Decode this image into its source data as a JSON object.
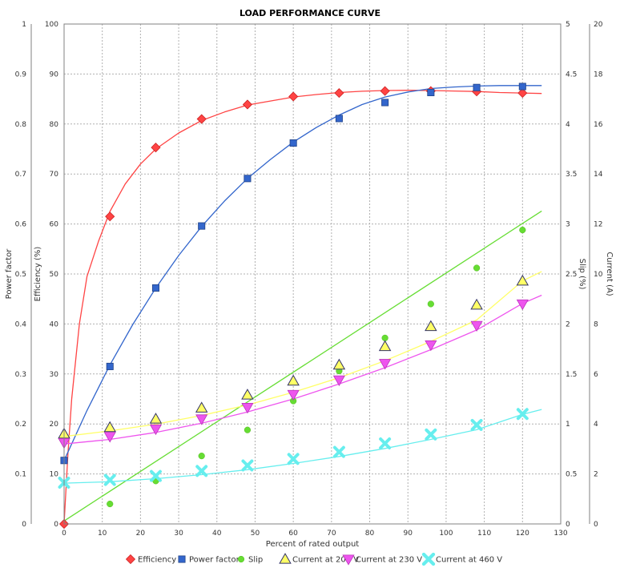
{
  "chart_data": {
    "type": "scatter",
    "title": "LOAD PERFORMANCE CURVE",
    "xlabel": "Percent of rated output",
    "xlim": [
      0,
      130
    ],
    "x_ticks": [
      0,
      10,
      20,
      30,
      40,
      50,
      60,
      70,
      80,
      90,
      100,
      110,
      120,
      130
    ],
    "grid": true,
    "legend_position": "bottom",
    "axes": {
      "power_factor": {
        "label": "Power factor",
        "side": "left-outer",
        "range": [
          0,
          1
        ],
        "ticks": [
          "0",
          "0.1",
          "0.2",
          "0.3",
          "0.4",
          "0.5",
          "0.6",
          "0.7",
          "0.8",
          "0.9",
          "1"
        ]
      },
      "efficiency": {
        "label": "Efficiency (%)",
        "side": "left-inner",
        "range": [
          0,
          100
        ],
        "ticks": [
          "0",
          "10",
          "20",
          "30",
          "40",
          "50",
          "60",
          "70",
          "80",
          "90",
          "100"
        ]
      },
      "slip": {
        "label": "Slip (%)",
        "side": "right-inner",
        "range": [
          0,
          5
        ],
        "ticks": [
          "0",
          "0.5",
          "1",
          "1.5",
          "2",
          "2.5",
          "3",
          "3.5",
          "4",
          "4.5",
          "5"
        ]
      },
      "current": {
        "label": "Current (A)",
        "side": "right-outer",
        "range": [
          0,
          20
        ],
        "ticks": [
          "0",
          "2",
          "4",
          "6",
          "8",
          "10",
          "12",
          "14",
          "16",
          "18",
          "20"
        ]
      }
    },
    "series": [
      {
        "name": "Efficiency",
        "axis": "efficiency",
        "color": "#ff4444",
        "marker": "diamond",
        "x": [
          0,
          12,
          24,
          36,
          48,
          60,
          72,
          84,
          96,
          108,
          120
        ],
        "values": [
          0,
          61.5,
          75.3,
          81,
          83.9,
          85.5,
          86.2,
          86.6,
          86.6,
          86.5,
          86.2
        ],
        "curve_x": [
          0,
          1,
          2,
          4,
          6,
          9,
          12,
          16,
          20,
          24,
          30,
          36,
          42,
          48,
          54,
          60,
          66,
          72,
          78,
          84,
          90,
          96,
          102,
          108,
          114,
          120,
          125
        ],
        "curve_y": [
          0,
          14,
          25,
          40,
          49.5,
          56.5,
          62.5,
          68,
          72,
          75,
          78.2,
          80.7,
          82.4,
          83.8,
          84.6,
          85.4,
          85.9,
          86.3,
          86.55,
          86.7,
          86.75,
          86.7,
          86.6,
          86.5,
          86.3,
          86.2,
          86.1
        ]
      },
      {
        "name": "Power factor",
        "axis": "power_factor",
        "color": "#3366cc",
        "marker": "square",
        "x": [
          0,
          12,
          24,
          36,
          48,
          60,
          72,
          84,
          96,
          108,
          120
        ],
        "values": [
          0.127,
          0.315,
          0.472,
          0.596,
          0.691,
          0.762,
          0.811,
          0.843,
          0.863,
          0.873,
          0.875
        ],
        "curve_x": [
          0,
          6,
          12,
          18,
          24,
          30,
          36,
          42,
          48,
          54,
          60,
          66,
          72,
          78,
          84,
          90,
          96,
          102,
          108,
          114,
          120,
          125
        ],
        "curve_y": [
          0.127,
          0.227,
          0.318,
          0.399,
          0.472,
          0.537,
          0.595,
          0.646,
          0.691,
          0.729,
          0.764,
          0.793,
          0.818,
          0.839,
          0.854,
          0.864,
          0.871,
          0.874,
          0.876,
          0.877,
          0.877,
          0.877
        ]
      },
      {
        "name": "Slip",
        "axis": "slip",
        "color": "#66dd33",
        "marker": "circle",
        "x": [
          12,
          24,
          36,
          48,
          60,
          72,
          84,
          96,
          108,
          120
        ],
        "values": [
          0.2,
          0.43,
          0.68,
          0.94,
          1.23,
          1.53,
          1.86,
          2.2,
          2.56,
          2.94
        ],
        "curve_x": [
          0,
          125
        ],
        "curve_y": [
          0.03,
          3.13
        ]
      },
      {
        "name": "Current at 208 V",
        "axis": "current",
        "color": "#ffff66",
        "marker": "triangle-up",
        "x": [
          0,
          12,
          24,
          36,
          48,
          60,
          72,
          84,
          96,
          108,
          120
        ],
        "values": [
          3.6,
          3.86,
          4.2,
          4.64,
          5.16,
          5.72,
          6.36,
          7.1,
          7.9,
          8.76,
          9.72
        ],
        "curve_x": [
          0,
          12,
          24,
          36,
          48,
          60,
          72,
          84,
          96,
          108,
          120,
          125
        ],
        "curve_y": [
          3.5,
          3.72,
          3.99,
          4.34,
          4.76,
          5.27,
          5.85,
          6.53,
          7.3,
          8.16,
          9.72,
          10.1
        ]
      },
      {
        "name": "Current at 230 V",
        "axis": "current",
        "color": "#ee55ee",
        "marker": "triangle-down",
        "x": [
          0,
          12,
          24,
          36,
          48,
          60,
          72,
          84,
          96,
          108,
          120
        ],
        "values": [
          3.25,
          3.5,
          3.8,
          4.2,
          4.66,
          5.18,
          5.76,
          6.42,
          7.16,
          7.94,
          8.8
        ],
        "curve_x": [
          0,
          12,
          24,
          36,
          48,
          60,
          72,
          84,
          96,
          108,
          120,
          125
        ],
        "curve_y": [
          3.2,
          3.38,
          3.66,
          4.03,
          4.48,
          5.0,
          5.6,
          6.25,
          6.97,
          7.76,
          8.82,
          9.15
        ]
      },
      {
        "name": "Current at 460 V",
        "axis": "current",
        "color": "#66eeee",
        "marker": "x",
        "x": [
          0,
          12,
          24,
          36,
          48,
          60,
          72,
          84,
          96,
          108,
          120
        ],
        "values": [
          1.65,
          1.76,
          1.92,
          2.12,
          2.34,
          2.6,
          2.88,
          3.22,
          3.58,
          3.96,
          4.4
        ],
        "curve_x": [
          0,
          12,
          24,
          36,
          48,
          60,
          72,
          84,
          96,
          108,
          120,
          125
        ],
        "curve_y": [
          1.63,
          1.69,
          1.81,
          1.97,
          2.17,
          2.42,
          2.7,
          3.02,
          3.38,
          3.77,
          4.38,
          4.58
        ]
      }
    ]
  }
}
